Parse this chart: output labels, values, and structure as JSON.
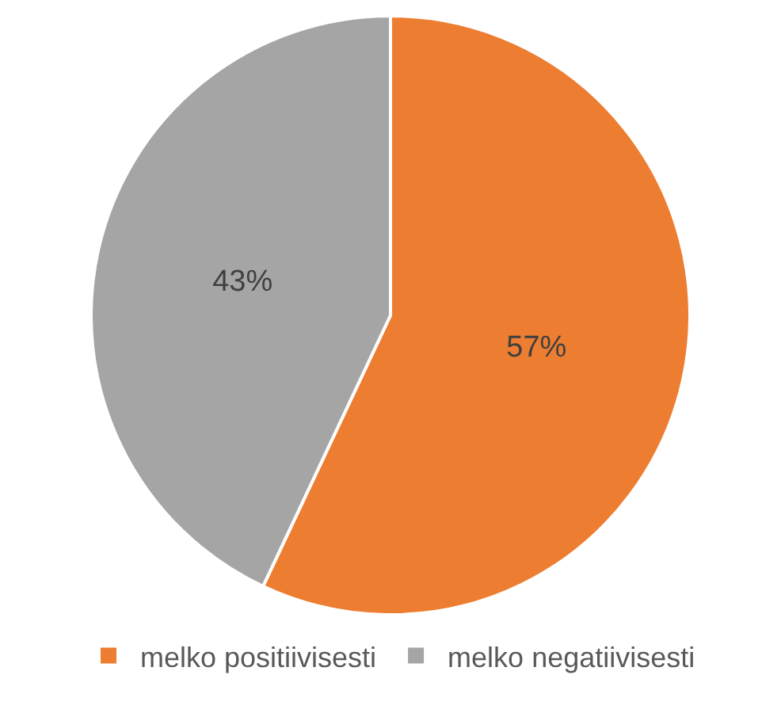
{
  "chart_data": {
    "type": "pie",
    "categories": [
      "melko positiivisesti",
      "melko negatiivisesti"
    ],
    "values": [
      57,
      43
    ],
    "colors": [
      "#ed7d31",
      "#a5a5a5"
    ],
    "value_labels": [
      "57%",
      "43%"
    ],
    "legend": "bottom"
  }
}
